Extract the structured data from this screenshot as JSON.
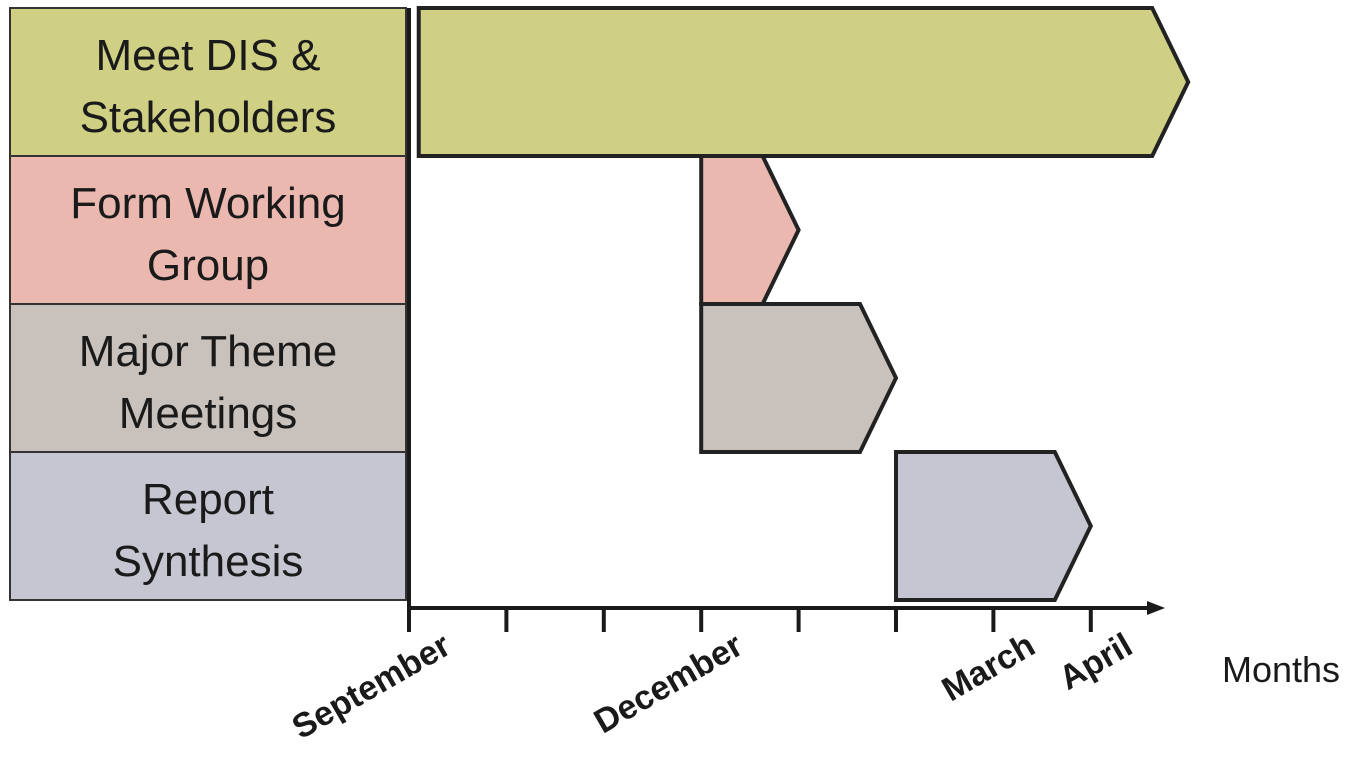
{
  "chart_data": {
    "type": "gantt",
    "xlabel": "Months",
    "x_ticks": [
      {
        "month": 0,
        "label": "September"
      },
      {
        "month": 1,
        "label": ""
      },
      {
        "month": 2,
        "label": ""
      },
      {
        "month": 3,
        "label": "December"
      },
      {
        "month": 4,
        "label": ""
      },
      {
        "month": 5,
        "label": ""
      },
      {
        "month": 6,
        "label": "March"
      },
      {
        "month": 7,
        "label": "April"
      }
    ],
    "xlim": [
      0,
      7.6
    ],
    "tasks": [
      {
        "name": "Meet DIS & Stakeholders",
        "lines": [
          "Meet DIS &",
          "Stakeholders"
        ],
        "start": 0.1,
        "end": 8.0,
        "color": "#cfd084"
      },
      {
        "name": "Form Working Group",
        "lines": [
          "Form Working",
          "Group"
        ],
        "start": 3.0,
        "end": 4.0,
        "color": "#ebb8b0"
      },
      {
        "name": "Major Theme Meetings",
        "lines": [
          "Major Theme",
          "Meetings"
        ],
        "start": 3.0,
        "end": 5.0,
        "color": "#c9c1bc"
      },
      {
        "name": "Report Synthesis",
        "lines": [
          "Report",
          "Synthesis"
        ],
        "start": 5.0,
        "end": 7.0,
        "color": "#c5c6d1"
      }
    ],
    "grid": false
  }
}
